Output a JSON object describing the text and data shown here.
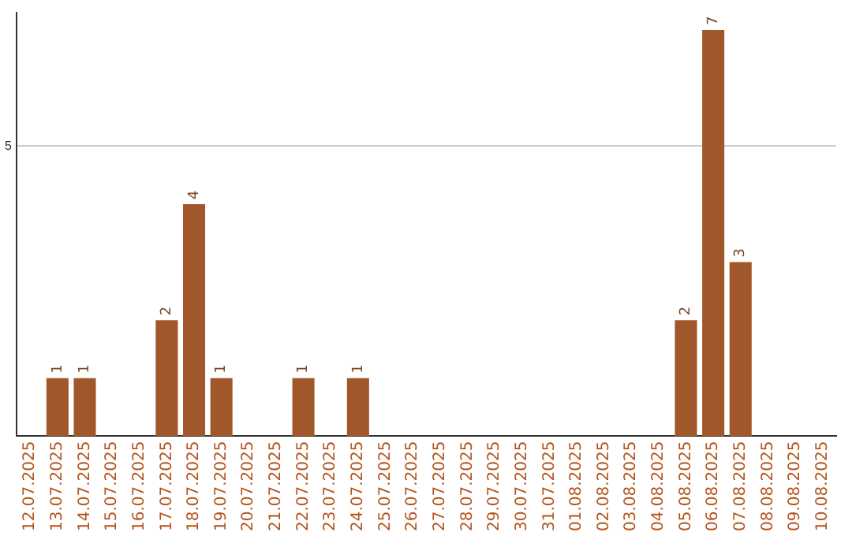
{
  "chart_data": {
    "type": "bar",
    "categories": [
      "12.07.2025",
      "13.07.2025",
      "14.07.2025",
      "15.07.2025",
      "16.07.2025",
      "17.07.2025",
      "18.07.2025",
      "19.07.2025",
      "20.07.2025",
      "21.07.2025",
      "22.07.2025",
      "23.07.2025",
      "24.07.2025",
      "25.07.2025",
      "26.07.2025",
      "27.07.2025",
      "28.07.2025",
      "29.07.2025",
      "30.07.2025",
      "31.07.2025",
      "01.08.2025",
      "02.08.2025",
      "03.08.2025",
      "04.08.2025",
      "05.08.2025",
      "06.08.2025",
      "07.08.2025",
      "08.08.2025",
      "09.08.2025",
      "10.08.2025"
    ],
    "values": [
      0,
      1,
      1,
      0,
      0,
      2,
      4,
      1,
      0,
      0,
      1,
      0,
      1,
      0,
      0,
      0,
      0,
      0,
      0,
      0,
      0,
      0,
      0,
      0,
      2,
      7,
      3,
      0,
      0,
      0
    ],
    "color": "#a0572a",
    "value_labels": [
      null,
      "1",
      "1",
      null,
      null,
      "2",
      "4",
      "1",
      null,
      null,
      "1",
      null,
      "1",
      null,
      null,
      null,
      null,
      null,
      null,
      null,
      null,
      null,
      null,
      null,
      "2",
      "7",
      "3",
      null,
      null,
      null
    ],
    "ylim": [
      0,
      7.3
    ],
    "yticks": [
      5
    ],
    "grid": "y",
    "legend": false
  }
}
